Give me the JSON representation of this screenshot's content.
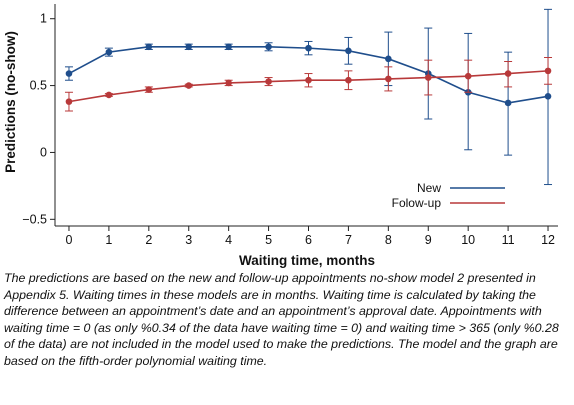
{
  "chart_data": {
    "type": "line",
    "xlabel": "Waiting time, months",
    "ylabel": "Predictions (no-show)",
    "x": [
      0,
      1,
      2,
      3,
      4,
      5,
      6,
      7,
      8,
      9,
      10,
      11,
      12
    ],
    "x_tick_labels": [
      "0",
      "1",
      "2",
      "3",
      "4",
      "5",
      "6",
      "7",
      "8",
      "9",
      "10",
      "11",
      "12"
    ],
    "xlim": [
      -0.35,
      12.25
    ],
    "ylim": [
      -0.55,
      1.11
    ],
    "y_ticks": [
      -0.5,
      0,
      0.5,
      1
    ],
    "y_tick_labels": [
      "−0.5",
      "0",
      "0.5",
      "1"
    ],
    "grid": false,
    "legend_position": "bottom-right",
    "series": [
      {
        "name": "New",
        "color": "#1f4e8c",
        "values": [
          0.59,
          0.75,
          0.79,
          0.79,
          0.79,
          0.79,
          0.78,
          0.76,
          0.7,
          0.59,
          0.45,
          0.37,
          0.42
        ],
        "ci_low": [
          0.54,
          0.72,
          0.77,
          0.77,
          0.77,
          0.76,
          0.73,
          0.66,
          0.5,
          0.25,
          0.02,
          -0.02,
          -0.24
        ],
        "ci_high": [
          0.64,
          0.78,
          0.81,
          0.81,
          0.81,
          0.82,
          0.83,
          0.86,
          0.9,
          0.93,
          0.89,
          0.75,
          1.07
        ]
      },
      {
        "name": "Folow-up",
        "color": "#b8393a",
        "values": [
          0.38,
          0.43,
          0.47,
          0.5,
          0.52,
          0.53,
          0.54,
          0.54,
          0.55,
          0.56,
          0.57,
          0.59,
          0.61
        ],
        "ci_low": [
          0.31,
          0.42,
          0.45,
          0.49,
          0.5,
          0.5,
          0.49,
          0.47,
          0.46,
          0.43,
          0.45,
          0.49,
          0.51
        ],
        "ci_high": [
          0.45,
          0.44,
          0.49,
          0.51,
          0.54,
          0.56,
          0.59,
          0.61,
          0.64,
          0.69,
          0.69,
          0.68,
          0.71
        ]
      }
    ]
  },
  "caption": "The predictions are based on the new and follow-up appointments no-show model 2 presented in Appendix 5. Waiting times in these models are in months. Waiting time is calculated by taking the difference between an appointment’s date and an appointment’s approval date. Appointments with waiting time = 0 (as only %0.34 of the data have waiting time = 0) and waiting time > 365 (only %0.28 of the data) are not included in the model used to make the predictions. The model and the graph are based on the fifth-order polynomial waiting time."
}
